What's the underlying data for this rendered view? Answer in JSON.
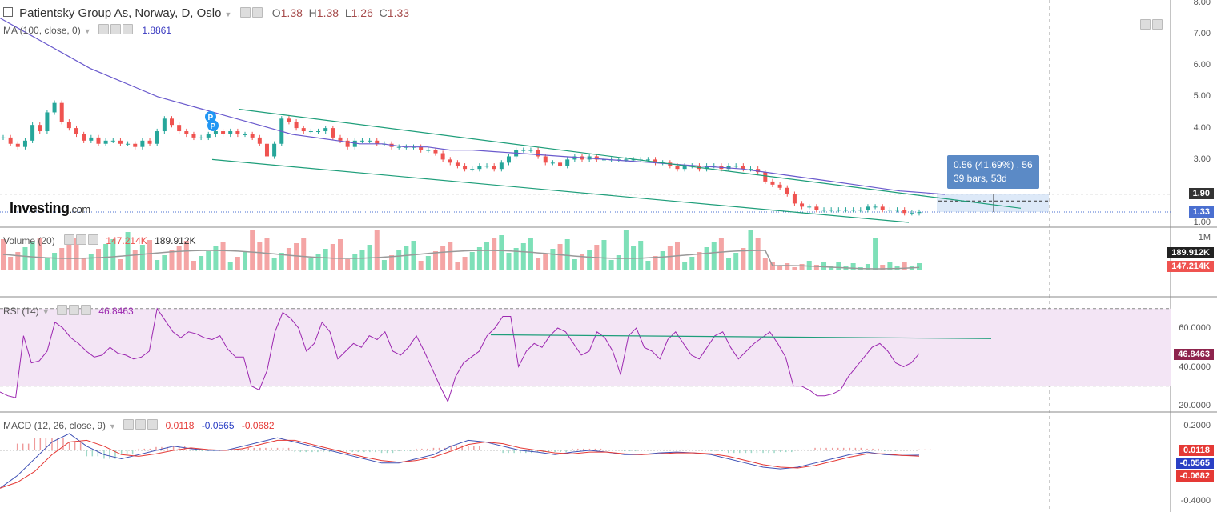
{
  "header": {
    "symbol_title": "Patientsky Group As, Norway, D, Oslo",
    "ohlc": {
      "o_label": "O",
      "o": "1.38",
      "h_label": "H",
      "h": "1.38",
      "l_label": "L",
      "l": "1.26",
      "c_label": "C",
      "c": "1.33"
    }
  },
  "indicators": {
    "ma": {
      "label": "MA (100, close, 0)",
      "value": "1.8861"
    },
    "volume": {
      "label": "Volume (20)",
      "value1": "147.214K",
      "value2": "189.912K"
    },
    "rsi": {
      "label": "RSI (14)",
      "value": "46.8463"
    },
    "macd": {
      "label": "MACD (12, 26, close, 9)",
      "v1": "0.0118",
      "v2": "-0.0565",
      "v3": "-0.0682"
    }
  },
  "logo": {
    "main": "Investing",
    "suffix": ".com"
  },
  "measure_tooltip": {
    "line1": "0.56 (41.69%) , 56",
    "line2": "39 bars, 53d"
  },
  "price_axis": {
    "ticks": [
      "8.00",
      "7.00",
      "6.00",
      "5.00",
      "4.00",
      "3.00",
      "1.00"
    ],
    "tag_190": "1.90",
    "tag_133": "1.33"
  },
  "volume_axis": {
    "tick": "1M",
    "tag_avg": "189.912K",
    "tag_cur": "147.214K"
  },
  "rsi_axis": {
    "ticks": [
      "60.0000",
      "40.0000",
      "20.0000"
    ],
    "tag": "46.8463"
  },
  "macd_axis": {
    "ticks": [
      "0.2000",
      "-0.4000"
    ],
    "tag1": "0.0118",
    "tag2": "-0.0565",
    "tag3": "-0.0682"
  },
  "colors": {
    "up": "#26a69a",
    "down": "#ef5350",
    "ma": "#6a5acd",
    "trend": "#1e9e7a",
    "rsi": "#9c27b0",
    "rsi_band": "#f3e5f5",
    "macd": "#3f51b5",
    "signal": "#e53935",
    "price_tag": "#4a6fd0",
    "volume_avg_tag": "#222",
    "volume_tag": "#ef5350",
    "rsi_tag": "#8e244d",
    "macd_tag1": "#e53935",
    "macd_tag2": "#2a3fc4",
    "macd_tag3": "#e53935"
  },
  "chart_data": [
    {
      "type": "candlestick",
      "title": "Patientsky Group As, Norway, D, Oslo",
      "ylim": [
        1.0,
        8.0
      ],
      "close": [
        3.7,
        3.5,
        3.4,
        3.6,
        4.1,
        3.9,
        4.5,
        4.8,
        4.2,
        4.0,
        3.8,
        3.6,
        3.7,
        3.5,
        3.6,
        3.6,
        3.5,
        3.5,
        3.4,
        3.6,
        3.5,
        3.9,
        4.3,
        4.1,
        3.9,
        3.8,
        3.7,
        3.7,
        3.8,
        3.9,
        3.8,
        3.9,
        3.8,
        3.8,
        3.7,
        3.5,
        3.1,
        3.5,
        4.3,
        4.2,
        4.0,
        3.9,
        3.9,
        3.9,
        4.0,
        3.7,
        3.6,
        3.4,
        3.6,
        3.6,
        3.6,
        3.5,
        3.5,
        3.4,
        3.4,
        3.4,
        3.4,
        3.3,
        3.3,
        3.2,
        3.0,
        2.9,
        2.8,
        2.7,
        2.7,
        2.8,
        2.8,
        2.7,
        2.9,
        3.1,
        3.3,
        3.3,
        3.3,
        3.1,
        2.9,
        2.9,
        2.8,
        3.0,
        3.1,
        3.0,
        3.1,
        3.0,
        3.0,
        3.0,
        3.0,
        3.0,
        3.0,
        3.0,
        3.0,
        2.9,
        2.9,
        2.8,
        2.7,
        2.8,
        2.8,
        2.7,
        2.8,
        2.8,
        2.7,
        2.8,
        2.8,
        2.7,
        2.7,
        2.6,
        2.3,
        2.2,
        2.1,
        1.9,
        1.6,
        1.5,
        1.5,
        1.4,
        1.4,
        1.4,
        1.4,
        1.4,
        1.4,
        1.4,
        1.5,
        1.5,
        1.4,
        1.4,
        1.4,
        1.3,
        1.3,
        1.33
      ],
      "ma100": [
        7.5,
        7.1,
        6.7,
        6.3,
        5.9,
        5.6,
        5.3,
        5.0,
        4.8,
        4.6,
        4.4,
        4.2,
        4.0,
        3.8,
        3.7,
        3.6,
        3.5,
        3.5,
        3.4,
        3.4,
        3.3,
        3.3,
        3.25,
        3.2,
        3.15,
        3.1,
        3.05,
        3.0,
        2.95,
        2.9,
        2.85,
        2.8,
        2.75,
        2.7,
        2.6,
        2.5,
        2.4,
        2.3,
        2.2,
        2.1,
        2.0,
        1.95,
        1.89
      ],
      "trendlines": [
        {
          "from": [
            4.6,
            "upper-start"
          ],
          "to": [
            1.65,
            "upper-end"
          ]
        },
        {
          "from": [
            3.0,
            "lower-start"
          ],
          "to": [
            1.0,
            "lower-end"
          ]
        }
      ]
    },
    {
      "type": "bar",
      "title": "Volume (20)",
      "last": 147214,
      "average": 189912
    },
    {
      "type": "line",
      "title": "RSI (14)",
      "ylim": [
        10,
        75
      ],
      "bands": [
        30,
        70
      ],
      "last": 46.8463,
      "values": [
        27,
        25,
        24,
        56,
        42,
        43,
        48,
        63,
        60,
        55,
        52,
        48,
        45,
        46,
        50,
        47,
        46,
        44,
        45,
        48,
        70,
        64,
        58,
        55,
        58,
        57,
        55,
        54,
        56,
        49,
        45,
        45,
        30,
        28,
        38,
        58,
        68,
        65,
        60,
        48,
        52,
        63,
        58,
        44,
        48,
        52,
        50,
        56,
        54,
        58,
        48,
        46,
        50,
        56,
        48,
        39,
        30,
        22,
        35,
        42,
        45,
        48,
        56,
        60,
        66,
        66,
        40,
        48,
        52,
        50,
        56,
        60,
        58,
        52,
        46,
        48,
        58,
        55,
        48,
        36,
        56,
        60,
        50,
        48,
        44,
        54,
        58,
        52,
        46,
        44,
        50,
        56,
        58,
        50,
        44,
        48,
        52,
        55,
        58,
        52,
        45,
        30,
        30,
        28,
        25,
        25,
        26,
        28,
        35,
        40,
        45,
        50,
        52,
        48,
        42,
        40,
        42,
        46.8
      ]
    },
    {
      "type": "line",
      "title": "MACD (12, 26, close, 9)",
      "ylim": [
        -0.5,
        0.3
      ],
      "macd": [
        -0.45,
        -0.3,
        -0.1,
        0.1,
        0.2,
        0.05,
        -0.05,
        -0.1,
        -0.05,
        0.0,
        0.05,
        0.02,
        0.0,
        0.0,
        0.05,
        0.1,
        0.15,
        0.1,
        0.05,
        0.0,
        -0.05,
        -0.1,
        -0.15,
        -0.15,
        -0.1,
        -0.05,
        0.05,
        0.12,
        0.1,
        0.05,
        0.0,
        -0.02,
        -0.05,
        -0.02,
        0.0,
        -0.02,
        -0.05,
        -0.05,
        -0.03,
        -0.02,
        -0.03,
        -0.05,
        -0.1,
        -0.15,
        -0.2,
        -0.22,
        -0.2,
        -0.15,
        -0.1,
        -0.05,
        -0.02,
        -0.05,
        -0.06,
        -0.0565
      ],
      "signal": [
        -0.45,
        -0.38,
        -0.25,
        -0.05,
        0.1,
        0.12,
        0.05,
        -0.05,
        -0.07,
        -0.04,
        0.0,
        0.03,
        0.01,
        0.0,
        0.02,
        0.07,
        0.12,
        0.12,
        0.07,
        0.02,
        -0.03,
        -0.08,
        -0.12,
        -0.14,
        -0.12,
        -0.08,
        -0.01,
        0.07,
        0.1,
        0.08,
        0.03,
        0.0,
        -0.03,
        -0.04,
        -0.02,
        -0.02,
        -0.04,
        -0.05,
        -0.04,
        -0.03,
        -0.03,
        -0.04,
        -0.07,
        -0.12,
        -0.17,
        -0.2,
        -0.21,
        -0.18,
        -0.13,
        -0.08,
        -0.04,
        -0.04,
        -0.06,
        -0.0682
      ],
      "last": {
        "macd": -0.0565,
        "signal": -0.0682,
        "histogram": 0.0118
      }
    }
  ]
}
